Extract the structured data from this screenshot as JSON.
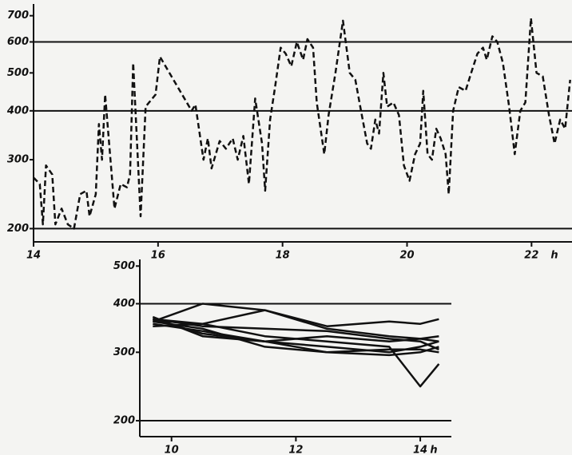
{
  "chart_data": [
    {
      "type": "line",
      "log_y": true,
      "color": "#111",
      "dashed": true,
      "xlabel": "h",
      "xlim": [
        14,
        22.65
      ],
      "xticks": [
        14,
        16,
        18,
        20,
        22
      ],
      "ylim": [
        185,
        750
      ],
      "yticks": [
        200,
        300,
        400,
        500,
        600,
        700
      ],
      "hlines": [
        200,
        400,
        600
      ],
      "x": [
        14.0,
        14.1,
        14.15,
        14.2,
        14.3,
        14.35,
        14.45,
        14.55,
        14.65,
        14.75,
        14.85,
        14.9,
        15.0,
        15.05,
        15.1,
        15.15,
        15.3,
        15.4,
        15.5,
        15.55,
        15.6,
        15.72,
        15.8,
        15.96,
        16.03,
        16.54,
        16.6,
        16.73,
        16.8,
        16.86,
        16.99,
        17.09,
        17.2,
        17.28,
        17.37,
        17.46,
        17.56,
        17.67,
        17.72,
        17.8,
        17.88,
        17.97,
        18.05,
        18.14,
        18.23,
        18.33,
        18.4,
        18.49,
        18.55,
        18.67,
        18.74,
        18.85,
        18.97,
        19.08,
        19.17,
        19.26,
        19.36,
        19.42,
        19.49,
        19.55,
        19.62,
        19.68,
        19.78,
        19.87,
        19.95,
        20.04,
        20.13,
        20.21,
        20.26,
        20.33,
        20.4,
        20.47,
        20.54,
        20.62,
        20.67,
        20.74,
        20.83,
        20.94,
        21.03,
        21.13,
        21.22,
        21.28,
        21.37,
        21.45,
        21.54,
        21.64,
        21.73,
        21.82,
        21.9,
        21.99,
        22.08,
        22.18,
        22.28,
        22.37,
        22.46,
        22.54,
        22.62
      ],
      "values": [
        270,
        260,
        205,
        290,
        275,
        205,
        225,
        205,
        200,
        245,
        250,
        215,
        245,
        370,
        300,
        440,
        225,
        260,
        255,
        275,
        530,
        215,
        410,
        440,
        550,
        400,
        415,
        300,
        340,
        285,
        335,
        320,
        340,
        300,
        345,
        260,
        430,
        330,
        250,
        380,
        460,
        580,
        560,
        520,
        600,
        540,
        610,
        580,
        420,
        310,
        390,
        500,
        680,
        500,
        480,
        400,
        330,
        320,
        380,
        350,
        500,
        410,
        420,
        390,
        290,
        265,
        310,
        330,
        450,
        310,
        300,
        360,
        340,
        310,
        245,
        400,
        460,
        450,
        500,
        560,
        580,
        540,
        620,
        600,
        530,
        410,
        310,
        400,
        420,
        690,
        500,
        490,
        390,
        330,
        380,
        360,
        480
      ]
    },
    {
      "type": "line",
      "log_y": true,
      "color": "#111",
      "dashed": false,
      "xlabel": "h",
      "xlim": [
        9.49,
        14.5
      ],
      "xticks": [
        10,
        12,
        14
      ],
      "ylim": [
        182,
        520
      ],
      "yticks": [
        200,
        300,
        400,
        500
      ],
      "hlines": [
        200,
        400
      ],
      "x": [
        9.7,
        10.5,
        11.5,
        12.5,
        13.5,
        14.0,
        14.3
      ],
      "series": [
        {
          "color": "#111",
          "values": [
            360,
            400,
            385,
            345,
            330,
            325,
            320
          ]
        },
        {
          "color": "#111",
          "values": [
            365,
            355,
            385,
            350,
            360,
            355,
            365
          ]
        },
        {
          "color": "#111",
          "values": [
            365,
            350,
            345,
            340,
            325,
            320,
            305
          ]
        },
        {
          "color": "#111",
          "values": [
            355,
            340,
            320,
            330,
            320,
            325,
            330
          ]
        },
        {
          "color": "#111",
          "values": [
            370,
            330,
            320,
            310,
            300,
            310,
            320
          ]
        },
        {
          "color": "#111",
          "values": [
            350,
            355,
            330,
            320,
            310,
            245,
            280
          ]
        },
        {
          "color": "#111",
          "values": [
            360,
            345,
            310,
            300,
            305,
            305,
            300
          ]
        },
        {
          "color": "#111",
          "values": [
            365,
            335,
            320,
            300,
            295,
            300,
            310
          ]
        }
      ]
    }
  ]
}
